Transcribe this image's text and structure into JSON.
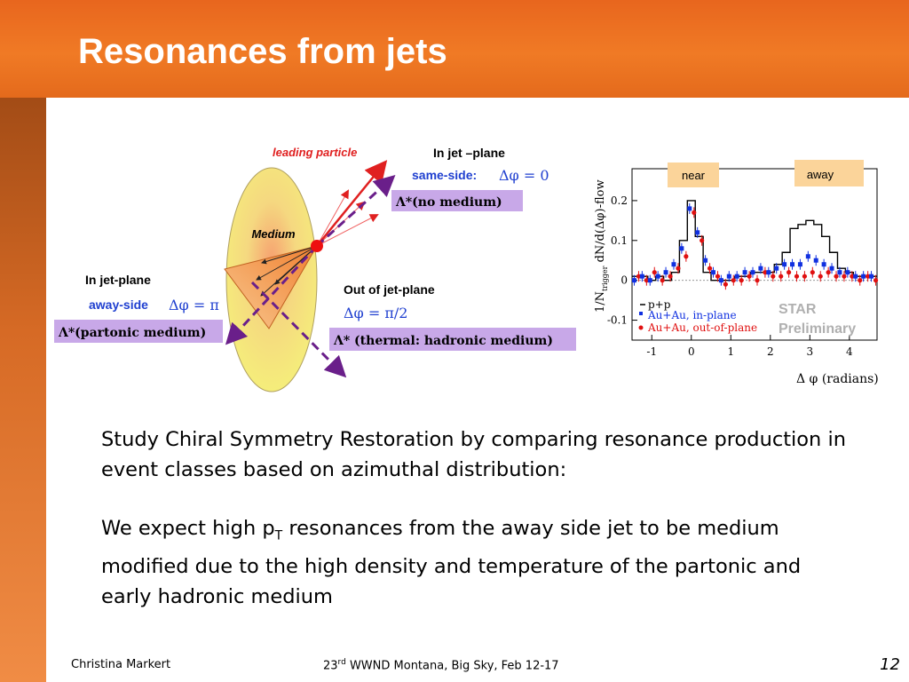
{
  "slide": {
    "title": "Resonances from jets",
    "paragraph1": "Study Chiral Symmetry Restoration by comparing resonance production in event classes based on azimuthal distribution:",
    "paragraph2_prefix": "We expect high p",
    "paragraph2_sub": "T",
    "paragraph2_suffix": " resonances from the away side jet to be medium modified due to the high density and temperature of the partonic and early hadronic medium",
    "footer_author": "Christina Markert",
    "footer_conf_prefix": "23",
    "footer_conf_sup": "rd",
    "footer_conf_suffix": " WWND Montana, Big Sky, Feb  12-17",
    "page_number": "12"
  },
  "diagram": {
    "leading_particle": "leading particle",
    "medium": "Medium",
    "in_jet_plane_top": "In jet –plane",
    "same_side": "same-side:",
    "dphi_0": "Δφ = 0",
    "lambda_no_medium": "Λ*(no medium)",
    "in_jet_plane_left": "In jet-plane",
    "away_side": "away-side",
    "dphi_pi": "Δφ = π",
    "lambda_partonic": "Λ*(partonic medium)",
    "out_of_jet_plane": "Out of jet-plane",
    "dphi_pi2": "Δφ = π/2",
    "lambda_thermal": "Λ* (thermal: hadronic medium)",
    "colors": {
      "medium": "#f5ef7a",
      "arrow_red": "#e02020",
      "arrow_purple": "#6a1f8a",
      "box_purple": "#c8a8e8",
      "blue_text": "#2040d0"
    }
  },
  "chart_data": {
    "type": "line",
    "xlabel": "Δ φ (radians)",
    "ylabel": "1/N",
    "ylabel_sub": "trigger",
    "ylabel_suffix": " dN/d(Δφ)-flow",
    "xlim": [
      -1.5,
      4.7
    ],
    "ylim": [
      -0.15,
      0.28
    ],
    "x_ticks": [
      -1,
      0,
      1,
      2,
      3,
      4
    ],
    "x_tick_labels": [
      "-1",
      "0",
      "1",
      "2",
      "3",
      "4"
    ],
    "y_ticks": [
      -0.1,
      0,
      0.1,
      0.2
    ],
    "y_tick_labels": [
      "-0.1",
      "0",
      "0.1",
      "0.2"
    ],
    "labels": {
      "near": "near",
      "away": "away",
      "star": "STAR",
      "preliminary": "Preliminary"
    },
    "legend": {
      "pp": "p+p",
      "in_plane": "Au+Au, in-plane",
      "out_plane": "Au+Au, out-of-plane"
    },
    "colors": {
      "pp": "#000000",
      "in_plane": "#1030e0",
      "out_plane": "#e01010",
      "label_box": "#fbd49a",
      "star": "#b0b0b0"
    },
    "x": [
      -1.4,
      -1.2,
      -1.0,
      -0.8,
      -0.6,
      -0.4,
      -0.2,
      0.0,
      0.2,
      0.4,
      0.6,
      0.8,
      1.0,
      1.2,
      1.4,
      1.6,
      1.8,
      2.0,
      2.2,
      2.4,
      2.6,
      2.8,
      3.0,
      3.2,
      3.4,
      3.6,
      3.8,
      4.0,
      4.2,
      4.4,
      4.6
    ],
    "series": [
      {
        "name": "p+p",
        "values": [
          0.01,
          0.01,
          0.0,
          0.01,
          0.0,
          0.02,
          0.1,
          0.2,
          0.11,
          0.02,
          0.0,
          0.0,
          0.0,
          0.01,
          0.01,
          0.02,
          0.02,
          0.02,
          0.04,
          0.07,
          0.13,
          0.14,
          0.15,
          0.14,
          0.11,
          0.07,
          0.03,
          0.02,
          0.01,
          0.01,
          0.01
        ]
      },
      {
        "name": "Au+Au, in-plane",
        "values": [
          0.0,
          0.01,
          0.0,
          0.01,
          0.02,
          0.04,
          0.08,
          0.18,
          0.12,
          0.05,
          0.02,
          0.0,
          0.01,
          0.01,
          0.02,
          0.02,
          0.03,
          0.02,
          0.03,
          0.04,
          0.04,
          0.04,
          0.06,
          0.05,
          0.04,
          0.03,
          0.02,
          0.02,
          0.01,
          0.01,
          0.01
        ]
      },
      {
        "name": "Au+Au, out-of-plane",
        "values": [
          0.01,
          0.0,
          0.02,
          0.0,
          0.01,
          0.03,
          0.06,
          0.17,
          0.1,
          0.03,
          0.01,
          -0.01,
          0.0,
          0.0,
          0.01,
          0.0,
          0.02,
          0.01,
          0.01,
          0.02,
          0.01,
          0.01,
          0.02,
          0.01,
          0.02,
          0.01,
          0.01,
          0.01,
          0.0,
          0.01,
          0.0
        ]
      }
    ]
  }
}
